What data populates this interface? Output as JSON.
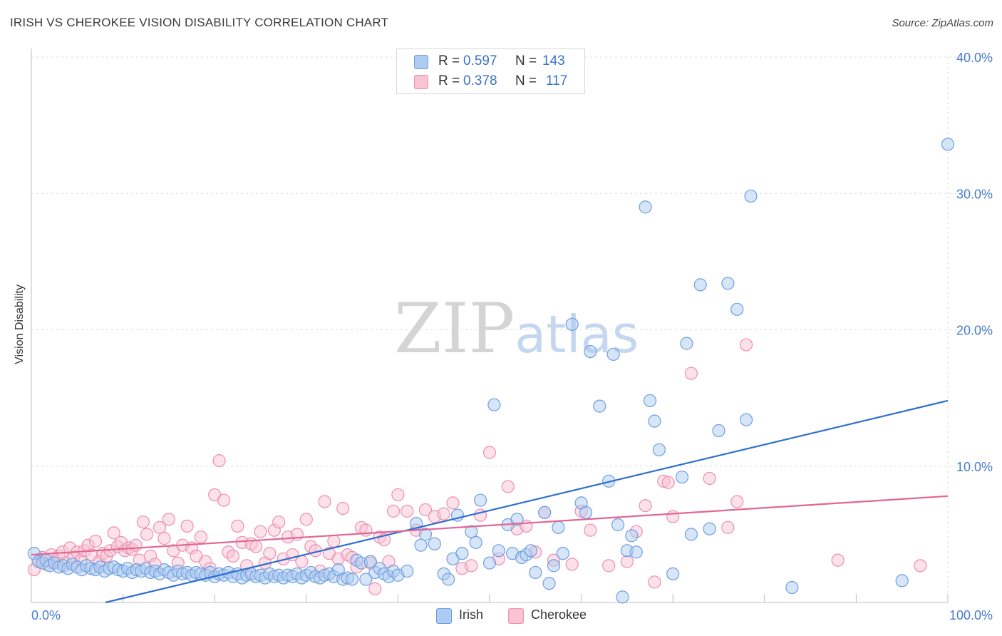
{
  "header": {
    "title": "IRISH VS CHEROKEE VISION DISABILITY CORRELATION CHART",
    "source": "Source: ZipAtlas.com"
  },
  "watermark": {
    "zip": "ZIP",
    "atlas": "atlas"
  },
  "stats": {
    "irish": {
      "r_label": "R =",
      "r": "0.597",
      "n_label": "N =",
      "n": "143"
    },
    "cherokee": {
      "r_label": "R =",
      "r": "0.378",
      "n_label": "N =",
      "n": "117"
    }
  },
  "legend": {
    "irish": "Irish",
    "cherokee": "Cherokee"
  },
  "colors": {
    "irish_fill": "#aecbf2",
    "irish_stroke": "#6f9fe0",
    "irish_line": "#2f6fd0",
    "cherokee_fill": "#f8c3d3",
    "cherokee_stroke": "#ee8fae",
    "cherokee_line": "#e36592",
    "tick": "#4a7cc9",
    "grid": "#dcdcdc"
  },
  "chart_data": {
    "type": "scatter",
    "title": "IRISH VS CHEROKEE VISION DISABILITY CORRELATION CHART",
    "xlabel": "",
    "ylabel": "Vision Disability",
    "xlim": [
      0,
      100
    ],
    "ylim": [
      0,
      40
    ],
    "x_tick_labels": [
      "0.0%",
      "100.0%"
    ],
    "y_ticks": [
      10,
      20,
      30,
      40
    ],
    "y_tick_labels": [
      "10.0%",
      "20.0%",
      "30.0%",
      "40.0%"
    ],
    "grid": true,
    "legend_position": "bottom",
    "series": [
      {
        "name": "Irish",
        "r": 0.597,
        "n": 143,
        "trend": {
          "x": [
            0,
            100
          ],
          "y": [
            -1.3,
            14.8
          ]
        },
        "points": [
          [
            0.3,
            3.6
          ],
          [
            0.8,
            3.0
          ],
          [
            1.2,
            2.9
          ],
          [
            1.6,
            3.1
          ],
          [
            2,
            2.7
          ],
          [
            2.5,
            2.9
          ],
          [
            3,
            2.6
          ],
          [
            3.5,
            2.7
          ],
          [
            4,
            2.5
          ],
          [
            4.5,
            2.8
          ],
          [
            5,
            2.6
          ],
          [
            5.5,
            2.4
          ],
          [
            6,
            2.7
          ],
          [
            6.5,
            2.5
          ],
          [
            7,
            2.4
          ],
          [
            7.5,
            2.6
          ],
          [
            8,
            2.3
          ],
          [
            8.5,
            2.5
          ],
          [
            9,
            2.6
          ],
          [
            9.5,
            2.4
          ],
          [
            10,
            2.3
          ],
          [
            10.5,
            2.5
          ],
          [
            11,
            2.2
          ],
          [
            11.5,
            2.4
          ],
          [
            12,
            2.3
          ],
          [
            12.5,
            2.5
          ],
          [
            13,
            2.2
          ],
          [
            13.5,
            2.3
          ],
          [
            14,
            2.1
          ],
          [
            14.5,
            2.4
          ],
          [
            15,
            2.2
          ],
          [
            15.5,
            2.0
          ],
          [
            16,
            2.3
          ],
          [
            16.5,
            2.1
          ],
          [
            17,
            2.2
          ],
          [
            17.5,
            2.0
          ],
          [
            18,
            2.2
          ],
          [
            18.5,
            2.1
          ],
          [
            19,
            2.0
          ],
          [
            19.5,
            2.2
          ],
          [
            20,
            1.9
          ],
          [
            20.5,
            2.1
          ],
          [
            21,
            2.0
          ],
          [
            21.5,
            2.2
          ],
          [
            22,
            1.9
          ],
          [
            22.5,
            2.1
          ],
          [
            23,
            1.8
          ],
          [
            23.5,
            2.0
          ],
          [
            24,
            2.1
          ],
          [
            24.5,
            1.9
          ],
          [
            25,
            2.0
          ],
          [
            25.5,
            1.8
          ],
          [
            26,
            2.1
          ],
          [
            26.5,
            1.9
          ],
          [
            27,
            2.0
          ],
          [
            27.5,
            1.8
          ],
          [
            28,
            2.0
          ],
          [
            28.5,
            1.9
          ],
          [
            29,
            2.1
          ],
          [
            29.5,
            1.8
          ],
          [
            30,
            2.0
          ],
          [
            30.5,
            2.2
          ],
          [
            31,
            1.9
          ],
          [
            31.5,
            1.8
          ],
          [
            32,
            2.0
          ],
          [
            32.5,
            2.1
          ],
          [
            33,
            1.9
          ],
          [
            33.5,
            2.4
          ],
          [
            34,
            1.7
          ],
          [
            34.5,
            1.8
          ],
          [
            35,
            1.7
          ],
          [
            35.5,
            3.1
          ],
          [
            36,
            2.9
          ],
          [
            36.5,
            1.7
          ],
          [
            37,
            3.0
          ],
          [
            37.5,
            2.2
          ],
          [
            38,
            2.5
          ],
          [
            38.5,
            2.1
          ],
          [
            39,
            1.9
          ],
          [
            39.5,
            2.3
          ],
          [
            40,
            2.0
          ],
          [
            41,
            2.3
          ],
          [
            42,
            5.8
          ],
          [
            42.5,
            4.2
          ],
          [
            43,
            5.0
          ],
          [
            44,
            4.3
          ],
          [
            45,
            2.1
          ],
          [
            45.5,
            1.7
          ],
          [
            46,
            3.2
          ],
          [
            46.5,
            6.4
          ],
          [
            47,
            3.6
          ],
          [
            48,
            5.2
          ],
          [
            48.5,
            4.4
          ],
          [
            49,
            7.5
          ],
          [
            50,
            2.9
          ],
          [
            50.5,
            14.5
          ],
          [
            51,
            3.8
          ],
          [
            52,
            5.7
          ],
          [
            52.5,
            3.6
          ],
          [
            53,
            6.1
          ],
          [
            53.5,
            3.3
          ],
          [
            54,
            3.5
          ],
          [
            54.5,
            3.8
          ],
          [
            55,
            2.2
          ],
          [
            56,
            6.6
          ],
          [
            56.5,
            1.4
          ],
          [
            57,
            2.7
          ],
          [
            57.5,
            5.5
          ],
          [
            58,
            3.6
          ],
          [
            59,
            20.4
          ],
          [
            60,
            7.3
          ],
          [
            60.5,
            6.6
          ],
          [
            61,
            18.4
          ],
          [
            62,
            14.4
          ],
          [
            63,
            8.9
          ],
          [
            63.5,
            18.2
          ],
          [
            64,
            5.7
          ],
          [
            64.5,
            0.4
          ],
          [
            65,
            3.8
          ],
          [
            65.5,
            4.9
          ],
          [
            66,
            3.7
          ],
          [
            67,
            29.0
          ],
          [
            67.5,
            14.8
          ],
          [
            68,
            13.3
          ],
          [
            68.5,
            11.2
          ],
          [
            70,
            2.1
          ],
          [
            71,
            9.2
          ],
          [
            71.5,
            19.0
          ],
          [
            72,
            5.0
          ],
          [
            73,
            23.3
          ],
          [
            74,
            5.4
          ],
          [
            75,
            12.6
          ],
          [
            76,
            23.4
          ],
          [
            77,
            21.5
          ],
          [
            78,
            13.4
          ],
          [
            78.5,
            29.8
          ],
          [
            83,
            1.1
          ],
          [
            95,
            1.6
          ],
          [
            100,
            33.6
          ]
        ]
      },
      {
        "name": "Cherokee",
        "r": 0.378,
        "n": 117,
        "trend": {
          "x": [
            0,
            100
          ],
          "y": [
            3.5,
            7.8
          ]
        },
        "points": [
          [
            0.3,
            2.4
          ],
          [
            0.8,
            3.0
          ],
          [
            1.2,
            3.3
          ],
          [
            1.6,
            2.8
          ],
          [
            2.2,
            3.5
          ],
          [
            2.6,
            3.0
          ],
          [
            3,
            3.4
          ],
          [
            3.4,
            3.7
          ],
          [
            3.8,
            2.9
          ],
          [
            4.2,
            4.0
          ],
          [
            4.6,
            3.3
          ],
          [
            5,
            3.7
          ],
          [
            5.4,
            3.1
          ],
          [
            5.8,
            3.8
          ],
          [
            6.2,
            4.2
          ],
          [
            6.6,
            3.5
          ],
          [
            7,
            4.5
          ],
          [
            7.4,
            3.0
          ],
          [
            7.8,
            3.6
          ],
          [
            8.2,
            3.4
          ],
          [
            8.6,
            3.8
          ],
          [
            9,
            5.1
          ],
          [
            9.4,
            4.1
          ],
          [
            9.8,
            4.4
          ],
          [
            10.2,
            3.8
          ],
          [
            10.6,
            4.0
          ],
          [
            11,
            3.9
          ],
          [
            11.4,
            4.2
          ],
          [
            11.8,
            3.1
          ],
          [
            12.2,
            5.9
          ],
          [
            12.6,
            5.0
          ],
          [
            13,
            3.4
          ],
          [
            13.5,
            2.8
          ],
          [
            14,
            5.5
          ],
          [
            14.5,
            4.7
          ],
          [
            15,
            6.1
          ],
          [
            15.5,
            3.8
          ],
          [
            16,
            2.9
          ],
          [
            16.5,
            4.2
          ],
          [
            17,
            5.6
          ],
          [
            17.5,
            4.0
          ],
          [
            18,
            3.4
          ],
          [
            18.5,
            4.8
          ],
          [
            19,
            3.0
          ],
          [
            19.5,
            2.5
          ],
          [
            20,
            7.9
          ],
          [
            20.5,
            10.4
          ],
          [
            21,
            7.5
          ],
          [
            21.5,
            3.7
          ],
          [
            22,
            3.4
          ],
          [
            22.5,
            5.6
          ],
          [
            23,
            4.4
          ],
          [
            23.5,
            2.7
          ],
          [
            24,
            4.3
          ],
          [
            24.5,
            4.1
          ],
          [
            25,
            5.2
          ],
          [
            25.5,
            2.9
          ],
          [
            26,
            3.6
          ],
          [
            26.5,
            5.3
          ],
          [
            27,
            5.9
          ],
          [
            27.5,
            3.2
          ],
          [
            28,
            4.8
          ],
          [
            28.5,
            3.5
          ],
          [
            29,
            5.0
          ],
          [
            29.5,
            3.0
          ],
          [
            30,
            6.1
          ],
          [
            30.5,
            4.1
          ],
          [
            31,
            3.8
          ],
          [
            31.5,
            2.3
          ],
          [
            32,
            7.4
          ],
          [
            32.5,
            3.6
          ],
          [
            33,
            4.5
          ],
          [
            33.5,
            3.2
          ],
          [
            34,
            6.9
          ],
          [
            34.5,
            3.5
          ],
          [
            35,
            3.3
          ],
          [
            35.5,
            2.6
          ],
          [
            36,
            5.5
          ],
          [
            36.5,
            5.3
          ],
          [
            37,
            2.9
          ],
          [
            37.5,
            1.0
          ],
          [
            38,
            4.8
          ],
          [
            38.5,
            4.6
          ],
          [
            39,
            3.0
          ],
          [
            39.5,
            6.7
          ],
          [
            40,
            7.9
          ],
          [
            41,
            6.7
          ],
          [
            42,
            5.3
          ],
          [
            43,
            6.8
          ],
          [
            44,
            6.3
          ],
          [
            45,
            6.5
          ],
          [
            46,
            7.3
          ],
          [
            47,
            2.5
          ],
          [
            48,
            2.7
          ],
          [
            49,
            6.4
          ],
          [
            50,
            11.0
          ],
          [
            51,
            3.2
          ],
          [
            52,
            8.5
          ],
          [
            53,
            5.4
          ],
          [
            54,
            5.6
          ],
          [
            55,
            3.7
          ],
          [
            56,
            6.6
          ],
          [
            57,
            3.1
          ],
          [
            59,
            2.8
          ],
          [
            60,
            6.7
          ],
          [
            61,
            5.3
          ],
          [
            63,
            2.7
          ],
          [
            65,
            3.0
          ],
          [
            66,
            5.2
          ],
          [
            67,
            7.1
          ],
          [
            68,
            1.5
          ],
          [
            69,
            8.9
          ],
          [
            69.5,
            8.8
          ],
          [
            70,
            6.3
          ],
          [
            72,
            16.8
          ],
          [
            74,
            9.1
          ],
          [
            76,
            5.5
          ],
          [
            77,
            7.4
          ],
          [
            78,
            18.9
          ],
          [
            88,
            3.1
          ],
          [
            97,
            2.7
          ]
        ]
      }
    ]
  }
}
